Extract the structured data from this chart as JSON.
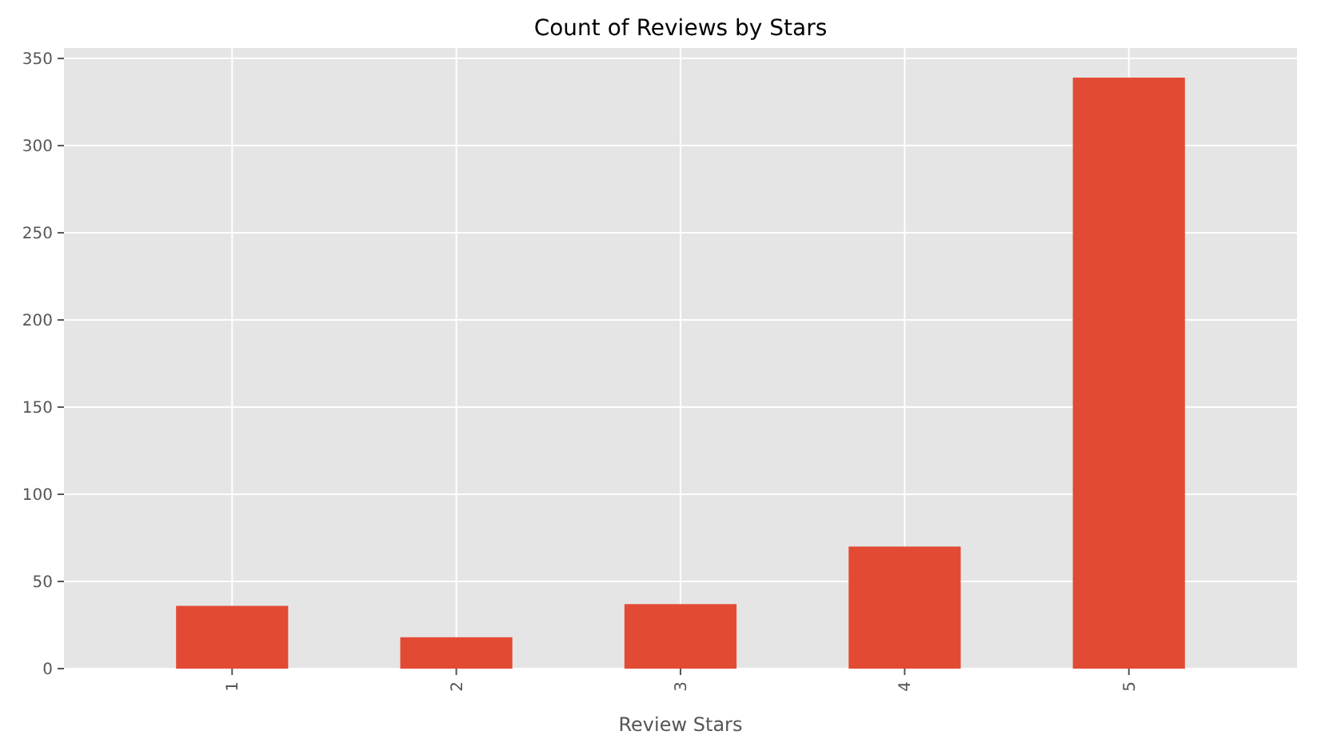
{
  "chart_data": {
    "type": "bar",
    "title": "Count of Reviews by Stars",
    "xlabel": "Review Stars",
    "categories": [
      "1",
      "2",
      "3",
      "4",
      "5"
    ],
    "values": [
      36,
      18,
      37,
      70,
      339
    ],
    "color": "#e24a33",
    "ylim": [
      0,
      356
    ],
    "yticks": [
      0,
      50,
      100,
      150,
      200,
      250,
      300,
      350
    ],
    "grid": true
  }
}
